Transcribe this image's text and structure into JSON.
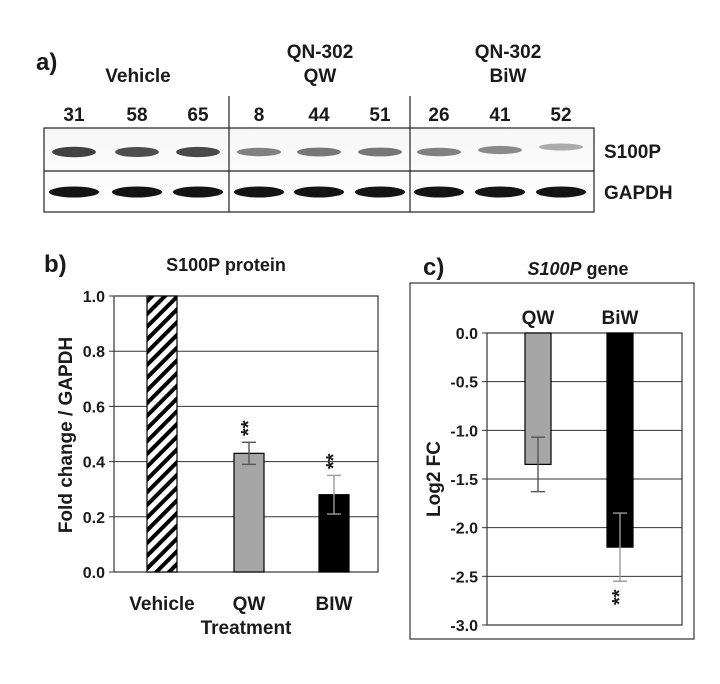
{
  "panel_a": {
    "label": "a)",
    "groups": [
      {
        "title_line1": "",
        "title_line2": "Vehicle",
        "lanes": [
          "31",
          "58",
          "65"
        ]
      },
      {
        "title_line1": "QN-302",
        "title_line2": "QW",
        "lanes": [
          "8",
          "44",
          "51"
        ]
      },
      {
        "title_line1": "QN-302",
        "title_line2": "BiW",
        "lanes": [
          "26",
          "41",
          "52"
        ]
      }
    ],
    "rows": [
      "S100P",
      "GAPDH"
    ],
    "band_intensity": {
      "S100P": [
        0.85,
        0.8,
        0.82,
        0.55,
        0.6,
        0.6,
        0.55,
        0.5,
        0.3
      ],
      "GAPDH": [
        1,
        1,
        1,
        1,
        1,
        1,
        1,
        1,
        1
      ]
    }
  },
  "chart_data": [
    {
      "type": "bar",
      "panel_label": "b)",
      "title": "S100P protein",
      "xlabel": "Treatment",
      "ylabel": "Fold change / GAPDH",
      "categories": [
        "Vehicle",
        "QW",
        "BIW"
      ],
      "values": [
        1.0,
        0.43,
        0.28
      ],
      "errors": [
        null,
        0.04,
        0.07
      ],
      "fills": [
        "hatch",
        "#a6a6a6",
        "#000000"
      ],
      "significance": [
        "",
        "**",
        "**"
      ],
      "ylim": [
        0.0,
        1.0
      ],
      "yticks": [
        "0.0",
        "0.2",
        "0.4",
        "0.6",
        "0.8",
        "1.0"
      ],
      "grid": true
    },
    {
      "type": "bar",
      "panel_label": "c)",
      "title_italic": "S100P",
      "title_rest": " gene",
      "xlabel": "",
      "ylabel": "Log2 FC",
      "categories": [
        "QW",
        "BiW"
      ],
      "values": [
        -1.35,
        -2.2
      ],
      "errors": [
        0.28,
        0.35
      ],
      "fills": [
        "#a6a6a6",
        "#000000"
      ],
      "significance": [
        "",
        "**"
      ],
      "ylim": [
        -3.0,
        0.0
      ],
      "yticks": [
        "0.0",
        "-0.5",
        "-1.0",
        "-1.5",
        "-2.0",
        "-2.5",
        "-3.0"
      ],
      "grid": true
    }
  ]
}
